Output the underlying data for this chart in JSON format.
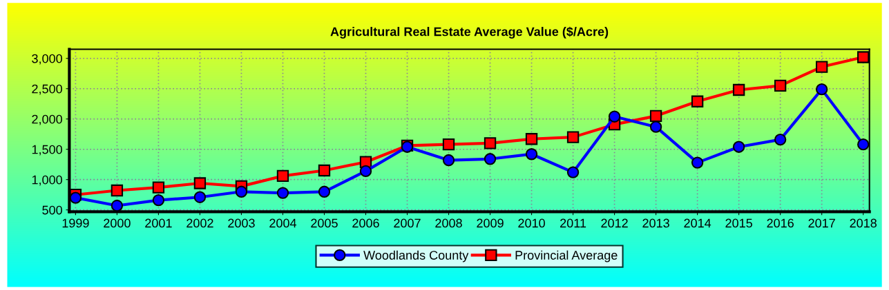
{
  "chart_data": {
    "type": "line",
    "title": "Agricultural Real Estate Average Value ($/Acre)",
    "categories": [
      "1999",
      "2000",
      "2001",
      "2002",
      "2003",
      "2004",
      "2005",
      "2006",
      "2007",
      "2008",
      "2009",
      "2010",
      "2011",
      "2012",
      "2013",
      "2014",
      "2015",
      "2016",
      "2017",
      "2018"
    ],
    "series": [
      {
        "name": "Woodlands County",
        "color": "#0000ff",
        "marker": "circle",
        "values": [
          700,
          570,
          660,
          710,
          800,
          780,
          800,
          1140,
          1540,
          1320,
          1340,
          1420,
          1120,
          2040,
          1870,
          1280,
          1540,
          1660,
          2490,
          1580
        ]
      },
      {
        "name": "Provincial Average",
        "color": "#ff0000",
        "marker": "square",
        "values": [
          750,
          820,
          870,
          940,
          890,
          1060,
          1150,
          1290,
          1560,
          1580,
          1600,
          1670,
          1700,
          1910,
          2050,
          2290,
          2480,
          2550,
          2860,
          3020
        ]
      }
    ],
    "ylim": [
      470,
      3150
    ],
    "yticks": [
      {
        "value": 500,
        "label": "500"
      },
      {
        "value": 1000,
        "label": "1,000"
      },
      {
        "value": 1500,
        "label": "1,500"
      },
      {
        "value": 2000,
        "label": "2,000"
      },
      {
        "value": 2500,
        "label": "2,500"
      },
      {
        "value": 3000,
        "label": "3,000"
      }
    ],
    "grid": true,
    "legend": "bottom",
    "line_style": "solid"
  }
}
